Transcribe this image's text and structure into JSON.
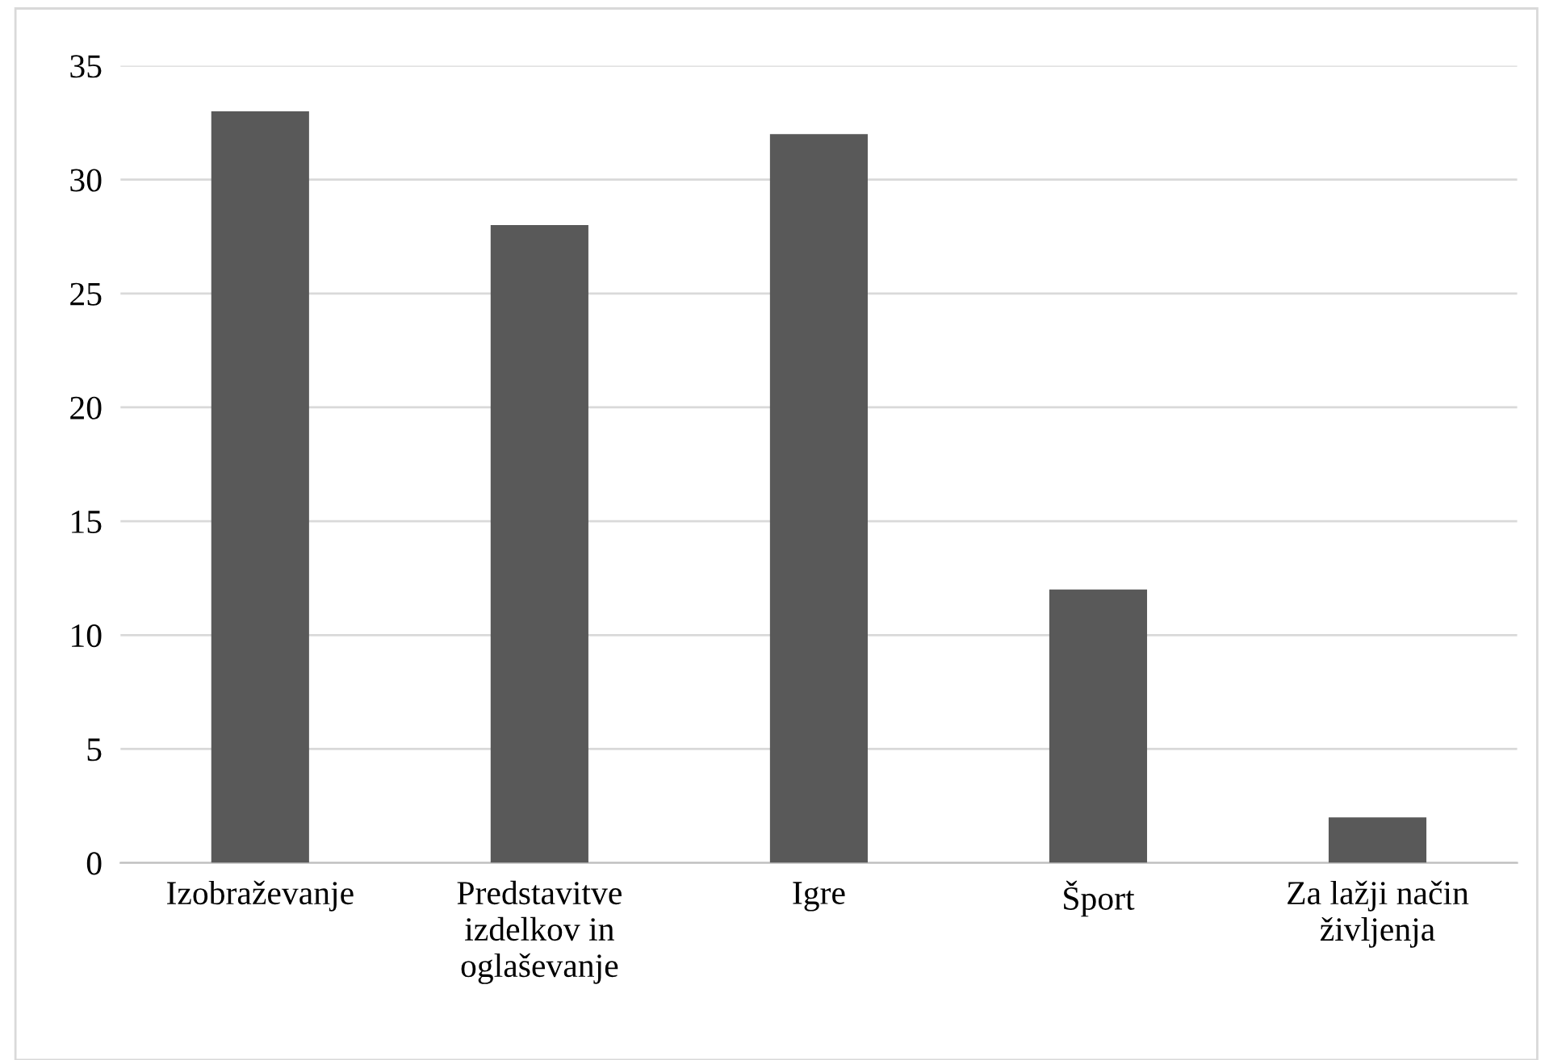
{
  "chart_data": {
    "type": "bar",
    "categories": [
      "Izobraževanje",
      "Predstavitve\nizdelkov in\noglaševanje",
      "Igre",
      "Šport",
      "Za lažji način\nživljenja"
    ],
    "values": [
      33,
      28,
      32,
      12,
      2
    ],
    "color": "#595959",
    "ylim": [
      0,
      35
    ],
    "yticks": [
      0,
      5,
      10,
      15,
      20,
      25,
      30,
      35
    ],
    "grid": "y"
  }
}
